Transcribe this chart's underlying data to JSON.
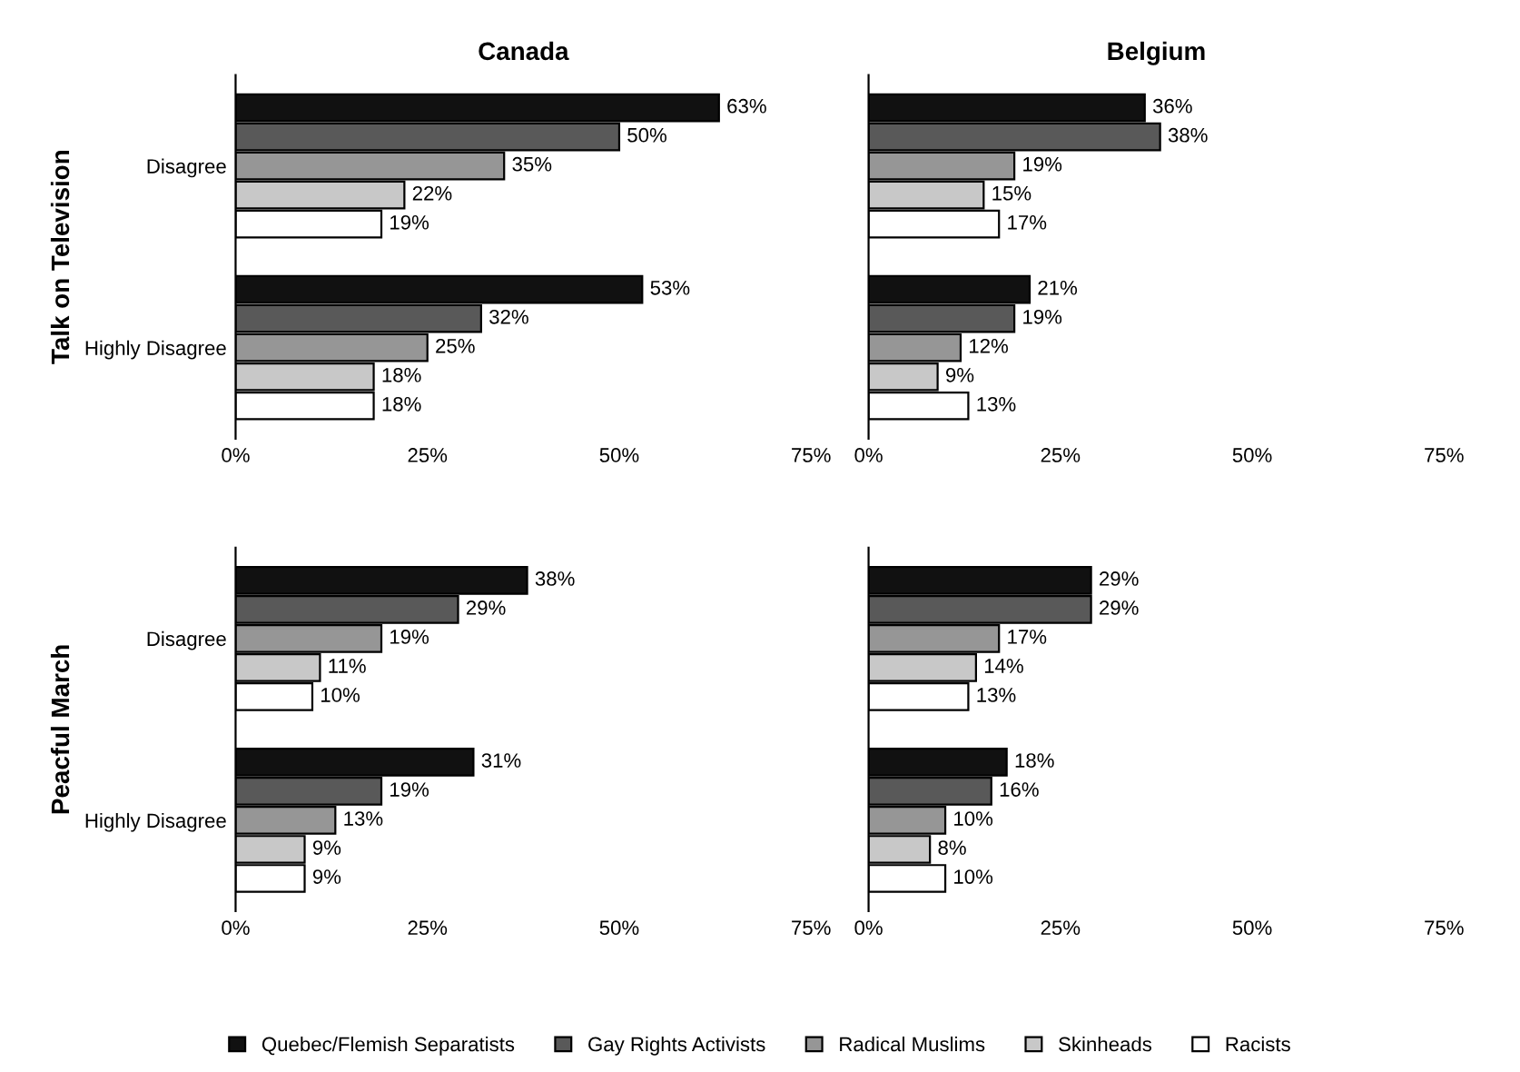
{
  "chart_data": [
    {
      "type": "bar",
      "orientation": "horizontal",
      "title": "Canada",
      "ylabel": "Talk on Television",
      "categories": [
        "Disagree",
        "Highly Disagree"
      ],
      "xlim": [
        0,
        75
      ],
      "xticks": [
        {
          "value": 0,
          "label": "0%"
        },
        {
          "value": 25,
          "label": "25%"
        },
        {
          "value": 50,
          "label": "50%"
        },
        {
          "value": 75,
          "label": "75%"
        }
      ],
      "grid": false,
      "legend": false,
      "series": [
        {
          "color": "#111111",
          "values": [
            63,
            53
          ],
          "value_labels": [
            "63%",
            "53%"
          ]
        },
        {
          "color": "#595959",
          "values": [
            50,
            32
          ],
          "value_labels": [
            "50%",
            "32%"
          ]
        },
        {
          "color": "#969696",
          "values": [
            35,
            25
          ],
          "value_labels": [
            "35%",
            "25%"
          ]
        },
        {
          "color": "#c8c8c8",
          "values": [
            22,
            18
          ],
          "value_labels": [
            "22%",
            "18%"
          ]
        },
        {
          "color": "#ffffff",
          "values": [
            19,
            18
          ],
          "value_labels": [
            "19%",
            "18%"
          ]
        }
      ]
    },
    {
      "type": "bar",
      "orientation": "horizontal",
      "title": "Belgium",
      "categories": [
        null,
        null
      ],
      "xlim": [
        0,
        75
      ],
      "xticks": [
        {
          "value": 0,
          "label": "0%"
        },
        {
          "value": 25,
          "label": "25%"
        },
        {
          "value": 50,
          "label": "50%"
        },
        {
          "value": 75,
          "label": "75%"
        }
      ],
      "grid": false,
      "legend": false,
      "tick_labels": "x",
      "series": [
        {
          "color": "#111111",
          "values": [
            36,
            21
          ],
          "value_labels": [
            "36%",
            "21%"
          ]
        },
        {
          "color": "#595959",
          "values": [
            38,
            19
          ],
          "value_labels": [
            "38%",
            "19%"
          ]
        },
        {
          "color": "#969696",
          "values": [
            19,
            12
          ],
          "value_labels": [
            "19%",
            "12%"
          ]
        },
        {
          "color": "#c8c8c8",
          "values": [
            15,
            9
          ],
          "value_labels": [
            "15%",
            "9%"
          ]
        },
        {
          "color": "#ffffff",
          "values": [
            17,
            13
          ],
          "value_labels": [
            "17%",
            "13%"
          ]
        }
      ]
    },
    {
      "type": "bar",
      "orientation": "horizontal",
      "ylabel": "Peacful March",
      "categories": [
        "Disagree",
        "Highly Disagree"
      ],
      "xlim": [
        0,
        75
      ],
      "xticks": [
        {
          "value": 0,
          "label": "0%"
        },
        {
          "value": 25,
          "label": "25%"
        },
        {
          "value": 50,
          "label": "50%"
        },
        {
          "value": 75,
          "label": "75%"
        }
      ],
      "grid": false,
      "legend": false,
      "series": [
        {
          "color": "#111111",
          "values": [
            38,
            31
          ],
          "value_labels": [
            "38%",
            "31%"
          ]
        },
        {
          "color": "#595959",
          "values": [
            29,
            19
          ],
          "value_labels": [
            "29%",
            "19%"
          ]
        },
        {
          "color": "#969696",
          "values": [
            19,
            13
          ],
          "value_labels": [
            "19%",
            "13%"
          ]
        },
        {
          "color": "#c8c8c8",
          "values": [
            11,
            9
          ],
          "value_labels": [
            "11%",
            "9%"
          ]
        },
        {
          "color": "#ffffff",
          "values": [
            10,
            9
          ],
          "value_labels": [
            "10%",
            "9%"
          ]
        }
      ]
    },
    {
      "type": "bar",
      "orientation": "horizontal",
      "categories": [
        null,
        null
      ],
      "xlim": [
        0,
        75
      ],
      "xticks": [
        {
          "value": 0,
          "label": "0%"
        },
        {
          "value": 25,
          "label": "25%"
        },
        {
          "value": 50,
          "label": "50%"
        },
        {
          "value": 75,
          "label": "75%"
        }
      ],
      "grid": false,
      "legend": "bottom",
      "tick_labels": "x",
      "series": [
        {
          "name": "Quebec/Flemish Separatists",
          "color": "#111111",
          "values": [
            29,
            18
          ],
          "value_labels": [
            "29%",
            "18%"
          ]
        },
        {
          "name": "Gay Rights Activists",
          "color": "#595959",
          "values": [
            29,
            16
          ],
          "value_labels": [
            "29%",
            "16%"
          ]
        },
        {
          "name": "Radical Muslims",
          "color": "#969696",
          "values": [
            17,
            10
          ],
          "value_labels": [
            "17%",
            "10%"
          ]
        },
        {
          "name": "Skinheads",
          "color": "#c8c8c8",
          "values": [
            14,
            8
          ],
          "value_labels": [
            "14%",
            "8%"
          ]
        },
        {
          "name": "Racists",
          "color": "#ffffff",
          "values": [
            13,
            10
          ],
          "value_labels": [
            "13%",
            "10%"
          ]
        }
      ]
    }
  ]
}
